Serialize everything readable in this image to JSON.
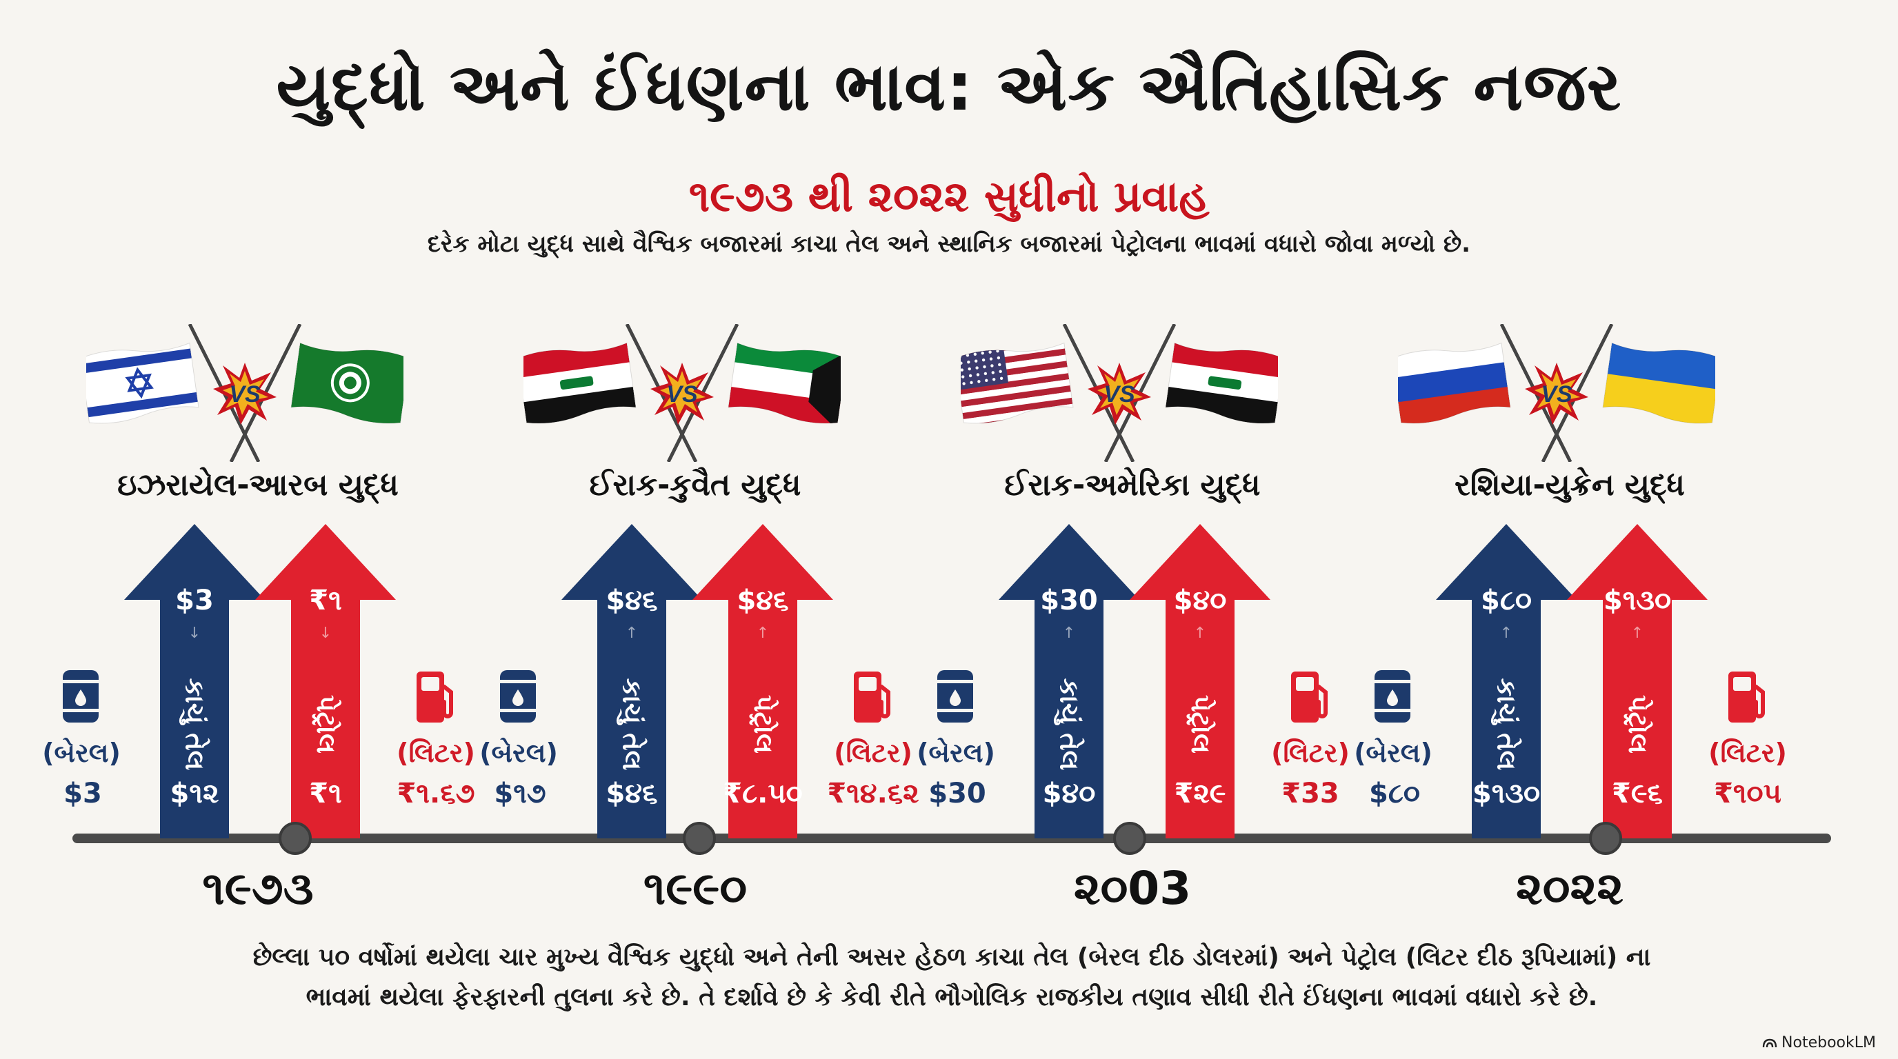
{
  "title": "યુદ્ધો અને ઈંધણના ભાવ: એક ઐતિહાસિક નજર",
  "subtitle": "૧૯૭૩ થી ૨૦૨૨ સુધીનો પ્રવાહ",
  "description": "દરેક મોટા યુદ્ધ સાથે વૈશ્વિક બજારમાં કાચા તેલ અને સ્થાનિક બજારમાં પેટ્રોલના ભાવમાં વધારો જોવા મળ્યો છે.",
  "vs_label": "VS",
  "labels": {
    "oil": "કાચું તેલ",
    "petrol": "પેટ્રોલ",
    "barrel": "(બેરલ)",
    "litre": "(લિટર)",
    "change_down": "↓",
    "change_up": "↑"
  },
  "colors": {
    "navy": "#1d3a6b",
    "red": "#e0212e",
    "timeline": "#4a4a4a"
  },
  "eras": [
    {
      "war": "ઇઝરાયેલ-આરબ યુદ્ધ",
      "year": "૧૯૭૩",
      "flags": [
        "israel",
        "arab-league"
      ],
      "oil_top": "$3",
      "oil_bottom": "$૧૨",
      "oil_change": "down",
      "petrol_top": "₹૧",
      "petrol_bottom": "₹૧",
      "petrol_change": "down",
      "barrel_value": "$3",
      "litre_value": "₹૧.૬૭"
    },
    {
      "war": "ઈરાક-કુવૈત યુદ્ધ",
      "year": "૧૯૯૦",
      "flags": [
        "iraq",
        "kuwait"
      ],
      "oil_top": "$૪૬",
      "oil_bottom": "$૪૬",
      "oil_change": "up",
      "petrol_top": "$૪૬",
      "petrol_bottom": "₹૮.૫૦",
      "petrol_change": "up",
      "barrel_value": "$૧૭",
      "litre_value": "₹૧૪.૬૨"
    },
    {
      "war": "ઈરાક-અમેરિકા યુદ્ધ",
      "year": "૨૦03",
      "flags": [
        "usa",
        "iraq"
      ],
      "oil_top": "$30",
      "oil_bottom": "$૪૦",
      "oil_change": "up",
      "petrol_top": "$૪૦",
      "petrol_bottom": "₹૨૯",
      "petrol_change": "up",
      "barrel_value": "$30",
      "litre_value": "₹33"
    },
    {
      "war": "રશિયા-યુક્રેન યુદ્ધ",
      "year": "૨૦૨૨",
      "flags": [
        "russia",
        "ukraine"
      ],
      "oil_top": "$૮૦",
      "oil_bottom": "$૧૩૦",
      "oil_change": "up",
      "petrol_top": "$૧૩૦",
      "petrol_bottom": "₹૯૬",
      "petrol_change": "up",
      "barrel_value": "$૮૦",
      "litre_value": "₹૧૦૫"
    }
  ],
  "footer_line1": "છેલ્લા ૫૦ વર્ષોમાં થયેલા ચાર મુખ્ય વૈશ્વિક યુદ્ધો અને તેની અસર હેઠળ કાચા તેલ (બેરલ દીઠ ડોલરમાં) અને પેટ્રોલ (લિટર દીઠ રૂપિયામાં) ના",
  "footer_line2": "ભાવમાં થયેલા ફેરફારની તુલના કરે છે. તે દર્શાવે છે કે કેવી રીતે ભૌગોલિક રાજકીય તણાવ સીધી રીતે ઈંધણના ભાવમાં વધારો કરે છે.",
  "brand": "NotebookLM"
}
